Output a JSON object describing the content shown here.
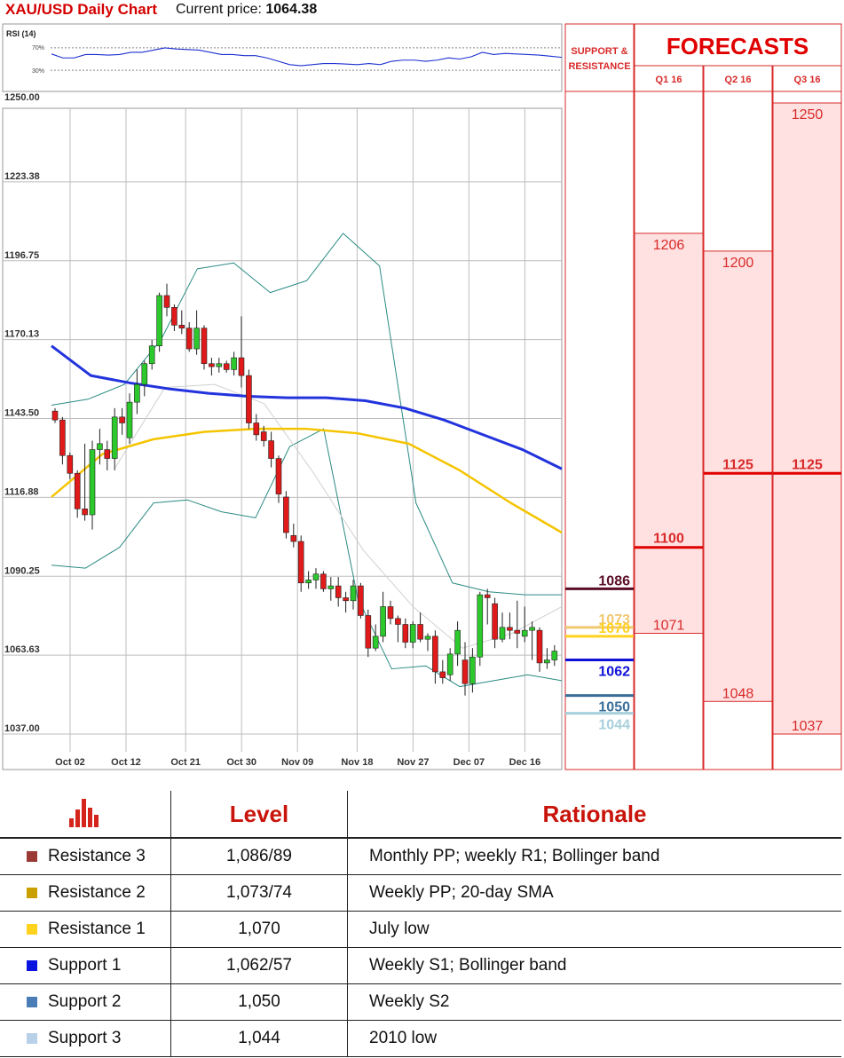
{
  "header": {
    "title": "XAU/USD Daily Chart",
    "price_label": "Current price: ",
    "price_value": "1064.38"
  },
  "chart_data": {
    "type": "candlestick",
    "rsi": {
      "label": "RSI (14)",
      "levels": [
        "70%",
        "30%"
      ],
      "values": [
        59,
        52,
        52,
        58,
        58,
        57,
        58,
        62,
        62,
        66,
        70,
        68,
        67,
        66,
        62,
        58,
        58,
        56,
        56,
        52,
        46,
        40,
        38,
        40,
        42,
        42,
        41,
        40,
        42,
        40,
        46,
        48,
        48,
        46,
        48,
        52,
        50,
        54,
        62,
        58,
        60,
        59,
        58,
        57,
        55,
        53
      ]
    },
    "y_ticks": [
      "1250.00",
      "1223.38",
      "1196.75",
      "1170.13",
      "1143.50",
      "1116.88",
      "1090.25",
      "1063.63",
      "1037.00"
    ],
    "y_tick_values": [
      1250,
      1223.38,
      1196.75,
      1170.13,
      1143.5,
      1116.88,
      1090.25,
      1063.63,
      1037
    ],
    "ylim": [
      1037,
      1250
    ],
    "x_ticks": [
      "Oct 02",
      "Oct 12",
      "Oct 21",
      "Oct 30",
      "Nov 09",
      "Nov 18",
      "Nov 27",
      "Dec 07",
      "Dec 16"
    ],
    "x_tick_index": [
      2.5,
      10,
      18,
      25.5,
      33,
      41,
      48.5,
      56,
      63.5
    ],
    "candles": [
      [
        1146,
        1147,
        1142,
        1143
      ],
      [
        1143,
        1144,
        1128,
        1131
      ],
      [
        1131,
        1132,
        1123,
        1125
      ],
      [
        1125,
        1126,
        1110,
        1113
      ],
      [
        1113,
        1135,
        1109,
        1111
      ],
      [
        1111,
        1136,
        1106,
        1133
      ],
      [
        1133,
        1140,
        1128,
        1135
      ],
      [
        1133,
        1136,
        1126,
        1130
      ],
      [
        1130,
        1147,
        1126,
        1144
      ],
      [
        1144,
        1147,
        1138,
        1142
      ],
      [
        1137,
        1152,
        1135,
        1149
      ],
      [
        1149,
        1160,
        1145,
        1155
      ],
      [
        1155,
        1163,
        1151,
        1162
      ],
      [
        1162,
        1170,
        1160,
        1168
      ],
      [
        1168,
        1186,
        1166,
        1185
      ],
      [
        1185,
        1189,
        1178,
        1181
      ],
      [
        1181,
        1182,
        1173,
        1175
      ],
      [
        1175,
        1180,
        1172,
        1174
      ],
      [
        1174,
        1176,
        1166,
        1167
      ],
      [
        1167,
        1180,
        1165,
        1174
      ],
      [
        1174,
        1175,
        1160,
        1162
      ],
      [
        1162,
        1164,
        1158,
        1161
      ],
      [
        1161,
        1164,
        1159,
        1162
      ],
      [
        1162,
        1163,
        1159,
        1160
      ],
      [
        1160,
        1166,
        1158,
        1164
      ],
      [
        1164,
        1178,
        1154,
        1158
      ],
      [
        1158,
        1160,
        1140,
        1142
      ],
      [
        1142,
        1145,
        1136,
        1138
      ],
      [
        1139,
        1141,
        1134,
        1136
      ],
      [
        1136,
        1139,
        1127,
        1130
      ],
      [
        1130,
        1131,
        1115,
        1118
      ],
      [
        1117,
        1119,
        1103,
        1105
      ],
      [
        1104,
        1108,
        1100,
        1102
      ],
      [
        1102,
        1104,
        1085,
        1088
      ],
      [
        1088,
        1092,
        1086,
        1089
      ],
      [
        1089,
        1093,
        1086,
        1091
      ],
      [
        1091,
        1092,
        1085,
        1086
      ],
      [
        1086,
        1090,
        1082,
        1087
      ],
      [
        1087,
        1090,
        1080,
        1083
      ],
      [
        1083,
        1085,
        1078,
        1082
      ],
      [
        1082,
        1089,
        1079,
        1087
      ],
      [
        1087,
        1088,
        1076,
        1077
      ],
      [
        1077,
        1079,
        1063,
        1066
      ],
      [
        1066,
        1074,
        1065,
        1070
      ],
      [
        1070,
        1085,
        1068,
        1080
      ],
      [
        1080,
        1082,
        1074,
        1076
      ],
      [
        1076,
        1077,
        1068,
        1074
      ],
      [
        1074,
        1076,
        1066,
        1068
      ],
      [
        1068,
        1075,
        1066,
        1074
      ],
      [
        1074,
        1078,
        1068,
        1069
      ],
      [
        1069,
        1071,
        1065,
        1070
      ],
      [
        1070,
        1072,
        1054,
        1058
      ],
      [
        1058,
        1062,
        1054,
        1056
      ],
      [
        1057,
        1066,
        1055,
        1064
      ],
      [
        1064,
        1075,
        1060,
        1072
      ],
      [
        1062,
        1068,
        1050,
        1054
      ],
      [
        1054,
        1066,
        1051,
        1063
      ],
      [
        1063,
        1085,
        1060,
        1084
      ],
      [
        1084,
        1086,
        1074,
        1083
      ],
      [
        1081,
        1083,
        1066,
        1069
      ],
      [
        1069,
        1078,
        1068,
        1073
      ],
      [
        1073,
        1078,
        1069,
        1072
      ],
      [
        1072,
        1082,
        1066,
        1071
      ],
      [
        1070,
        1080,
        1068,
        1072
      ],
      [
        1072,
        1075,
        1062,
        1073
      ],
      [
        1072,
        1073,
        1058,
        1061
      ],
      [
        1061,
        1066,
        1059,
        1062
      ],
      [
        1062,
        1067,
        1060,
        1065
      ]
    ],
    "sma_200": [
      1168,
      1158,
      1155.5,
      1153.5,
      1152,
      1151,
      1150.5,
      1150.5,
      1149.5,
      1147,
      1143,
      1138,
      1133,
      1126.5
    ],
    "sma_50": [
      1117,
      1131.5,
      1136.5,
      1139,
      1140,
      1140,
      1138.5,
      1135,
      1126,
      1115,
      1105
    ],
    "sma_20": [
      1127,
      1154,
      1155,
      1148.5,
      1125,
      1099,
      1080,
      1066,
      1071,
      1080
    ],
    "bb_upper": [
      1148,
      1150,
      1155,
      1170,
      1194,
      1196,
      1186,
      1190,
      1206,
      1195,
      1115,
      1088,
      1085,
      1084,
      1084
    ],
    "bb_lower": [
      1094,
      1093,
      1100,
      1115,
      1116,
      1112,
      1110,
      1134,
      1140,
      1083,
      1059,
      1060,
      1053,
      1055,
      1057,
      1055
    ]
  },
  "levels_panel": {
    "header": "SUPPORT & RESISTANCE",
    "levels": [
      {
        "value": 1086,
        "label": "1086",
        "color": "#5a0e26"
      },
      {
        "value": 1073,
        "label": "1073",
        "color": "#f0c870"
      },
      {
        "value": 1070,
        "label": "1070",
        "color": "#ffd21e"
      },
      {
        "value": 1062,
        "label": "1062",
        "color": "#1010d8"
      },
      {
        "value": 1050,
        "label": "1050",
        "color": "#3a6f9a"
      },
      {
        "value": 1044,
        "label": "1044",
        "color": "#a8d0dc"
      }
    ]
  },
  "forecasts": {
    "title": "FORECASTS",
    "quarters": [
      {
        "label": "Q1 16",
        "high": 1206,
        "high_label": "1206",
        "mid": 1100,
        "mid_label": "1100",
        "low": 1071,
        "low_label": "1071"
      },
      {
        "label": "Q2 16",
        "high": 1200,
        "high_label": "1200",
        "mid": 1125,
        "mid_label": "1125",
        "low": 1048,
        "low_label": "1048"
      },
      {
        "label": "Q3 16",
        "high": 1250,
        "high_label": "1250",
        "mid": 1125,
        "mid_label": "1125",
        "low": 1037,
        "low_label": "1037"
      }
    ]
  },
  "table": {
    "headers": [
      "",
      "Level",
      "Rationale"
    ],
    "rows": [
      {
        "name": "Resistance 3",
        "level": "1,086/89",
        "rationale": "Monthly PP; weekly R1; Bollinger band",
        "color": "#9b3a35"
      },
      {
        "name": "Resistance 2",
        "level": "1,073/74",
        "rationale": "Weekly PP; 20-day SMA",
        "color": "#c9a000"
      },
      {
        "name": "Resistance 1",
        "level": "1,070",
        "rationale": "July low",
        "color": "#ffd21e"
      },
      {
        "name": "Support 1",
        "level": "1,062/57",
        "rationale": "Weekly S1; Bollinger band",
        "color": "#0a14e0"
      },
      {
        "name": "Support 2",
        "level": "1,050",
        "rationale": "Weekly S2",
        "color": "#4a7db5"
      },
      {
        "name": "Support 3",
        "level": "1,044",
        "rationale": "2010 low",
        "color": "#b8d0e8"
      }
    ]
  }
}
